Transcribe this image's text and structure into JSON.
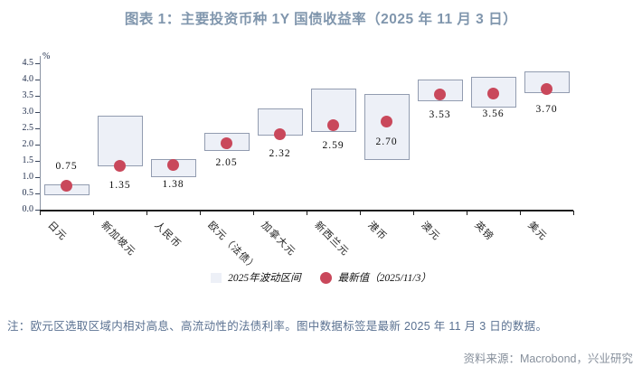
{
  "title": "图表 1：主要投资币种 1Y 国债收益率（2025 年 11 月 3 日）",
  "chart_data": {
    "type": "bar",
    "subtype": "floating-range-boxes-with-latest-value-dots",
    "title": "图表 1：主要投资币种 1Y 国债收益率（2025 年 11 月 3 日）",
    "ylabel": "%",
    "ylim": [
      0,
      4.5
    ],
    "ytick_step": 0.5,
    "yticks": [
      "0.0",
      "0.5",
      "1.0",
      "1.5",
      "2.0",
      "2.5",
      "3.0",
      "3.5",
      "4.0",
      "4.5"
    ],
    "grid": false,
    "legend_position": "bottom-center",
    "categories": [
      "日元",
      "新加坡元",
      "人民币",
      "欧元（法债）",
      "加拿大元",
      "新西兰元",
      "港币",
      "澳元",
      "英镑",
      "美元"
    ],
    "series": [
      {
        "name": "2025年波动区间",
        "type": "range",
        "ranges": [
          [
            0.45,
            0.78
          ],
          [
            1.34,
            2.88
          ],
          [
            1.0,
            1.55
          ],
          [
            1.8,
            2.36
          ],
          [
            2.29,
            3.1
          ],
          [
            2.4,
            3.73
          ],
          [
            1.54,
            3.55
          ],
          [
            3.32,
            4.0
          ],
          [
            3.14,
            4.09
          ],
          [
            3.57,
            4.26
          ]
        ]
      },
      {
        "name": "最新值（2025/11/3）",
        "type": "point",
        "values": [
          0.75,
          1.35,
          1.38,
          2.05,
          2.32,
          2.59,
          2.7,
          3.53,
          3.56,
          3.7
        ]
      }
    ],
    "data_labels": [
      "0.75",
      "1.35",
      "1.38",
      "2.05",
      "2.32",
      "2.59",
      "2.70",
      "3.53",
      "3.56",
      "3.70"
    ],
    "data_label_positions": [
      "above",
      "below",
      "below",
      "below",
      "below",
      "below",
      "below",
      "below",
      "below",
      "below"
    ]
  },
  "legend": {
    "range_label": "2025年波动区间",
    "dot_label": "最新值（2025/11/3）"
  },
  "note": "注：欧元区选取区域内相对高息、高流动性的法债利率。图中数据标签是最新 2025 年 11 月 3 日的数据。",
  "source": "资料来源：Macrobond，兴业研究",
  "colors": {
    "title": "#8096ad",
    "box_fill": "#edf0f7",
    "box_border": "#929cb0",
    "dot": "#c9485b",
    "note": "#5a7191",
    "source": "#868f9b"
  }
}
